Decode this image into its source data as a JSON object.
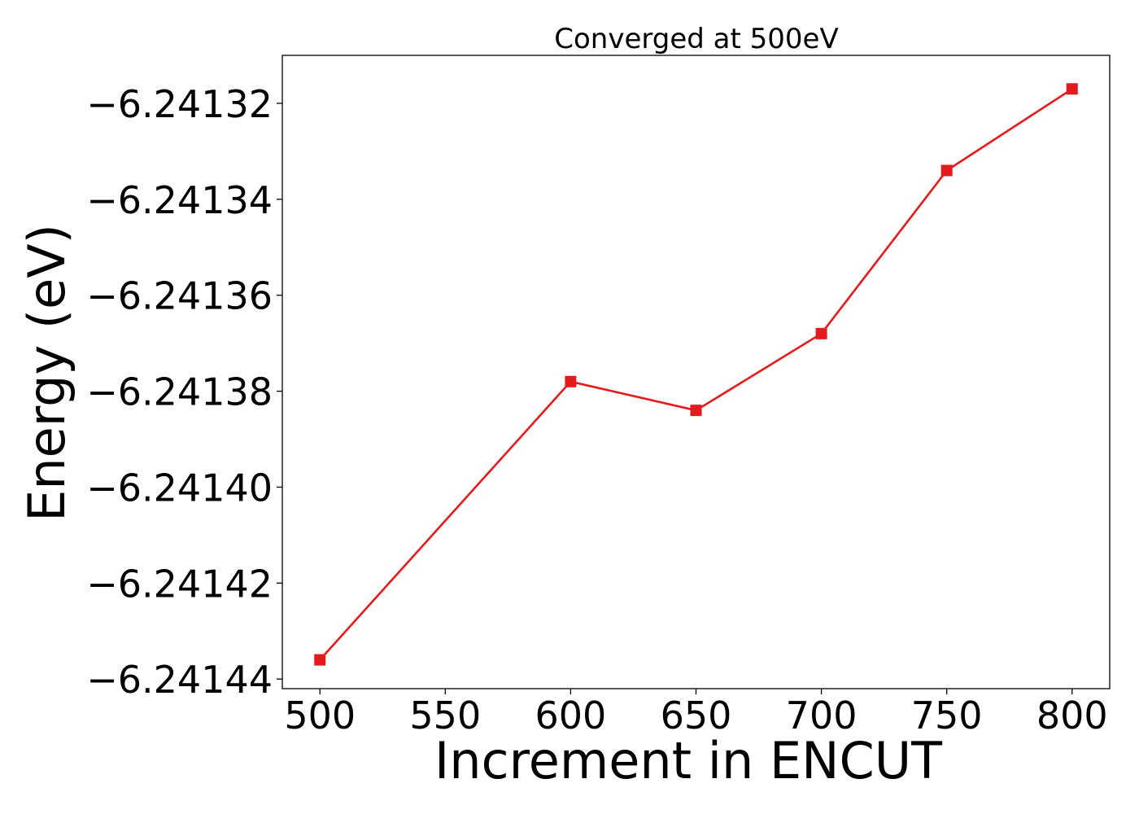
{
  "chart_data": {
    "type": "line",
    "title": "Converged at 500eV",
    "xlabel": "Increment in ENCUT",
    "ylabel": "Energy (eV)",
    "xlim": [
      485,
      815
    ],
    "ylim": [
      -6.241442,
      -6.24131
    ],
    "x_ticks": [
      500,
      550,
      600,
      650,
      700,
      750,
      800
    ],
    "y_ticks": [
      -6.24144,
      -6.24142,
      -6.2414,
      -6.24138,
      -6.24136,
      -6.24134,
      -6.24132
    ],
    "y_tick_labels": [
      "−6.24144",
      "−6.24142",
      "−6.24140",
      "−6.24138",
      "−6.24136",
      "−6.24134",
      "−6.24132"
    ],
    "grid": false,
    "series": [
      {
        "color": "#e41a1c",
        "marker": "square",
        "x": [
          500,
          600,
          650,
          700,
          750,
          800
        ],
        "y": [
          -6.241436,
          -6.241378,
          -6.241384,
          -6.241368,
          -6.241334,
          -6.241317
        ]
      }
    ]
  }
}
